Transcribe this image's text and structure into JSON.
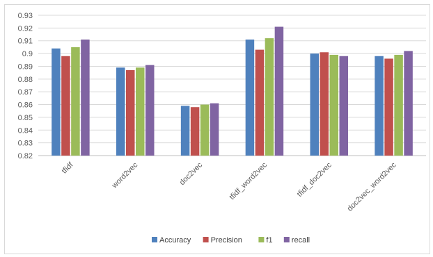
{
  "chart_data": {
    "type": "bar",
    "title": "",
    "xlabel": "",
    "ylabel": "",
    "ylim": [
      0.82,
      0.93
    ],
    "ytick_step": 0.01,
    "yticks": [
      "0.82",
      "0.83",
      "0.84",
      "0.85",
      "0.86",
      "0.87",
      "0.88",
      "0.89",
      "0.9",
      "0.91",
      "0.92",
      "0.93"
    ],
    "grid": true,
    "legend_position": "bottom",
    "categories": [
      "tfidf",
      "word2vec",
      "doc2vec",
      "tfidf_word2vec",
      "tfidf_doc2vec",
      "doc2vec_word2vec"
    ],
    "series": [
      {
        "name": "Accuracy",
        "color": "#4f81bd",
        "values": [
          0.904,
          0.889,
          0.859,
          0.911,
          0.9,
          0.898
        ]
      },
      {
        "name": "Precision",
        "color": "#c0504d",
        "values": [
          0.898,
          0.887,
          0.858,
          0.903,
          0.901,
          0.896
        ]
      },
      {
        "name": "f1",
        "color": "#9bbb59",
        "values": [
          0.905,
          0.889,
          0.86,
          0.912,
          0.899,
          0.899
        ]
      },
      {
        "name": "recall",
        "color": "#8064a2",
        "values": [
          0.911,
          0.891,
          0.861,
          0.921,
          0.898,
          0.902
        ]
      }
    ]
  }
}
